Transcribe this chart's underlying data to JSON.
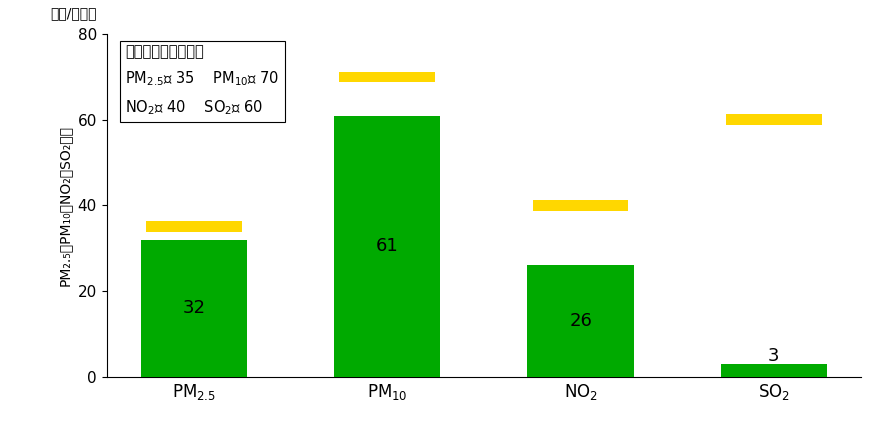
{
  "categories_latex": [
    "PM$_{2.5}$",
    "PM$_{10}$",
    "NO$_2$",
    "SO$_2$"
  ],
  "values": [
    32,
    61,
    26,
    3
  ],
  "standards": [
    35,
    70,
    40,
    60
  ],
  "bar_color": "#00aa00",
  "standard_color": "#FFD700",
  "bar_width": 0.55,
  "ylim": [
    0,
    80
  ],
  "yticks": [
    0,
    20,
    40,
    60,
    80
  ],
  "top_label": "微克/立方米",
  "legend_title": "国家二级标准限值：",
  "legend_line1_pre": "PM",
  "legend_line1_mid": "： 35    PM",
  "legend_line1_suf": "： 70",
  "legend_line2_pre": "NO",
  "legend_line2_mid": "： 40    SO",
  "legend_line2_suf": "： 60",
  "ylabel_chinese": "PM₂.₅、PM₁₀、NO₂、SO₂浓度",
  "value_fontsize": 13,
  "standard_bar_height": 2.5,
  "label_fontsize": 12,
  "tick_fontsize": 11
}
